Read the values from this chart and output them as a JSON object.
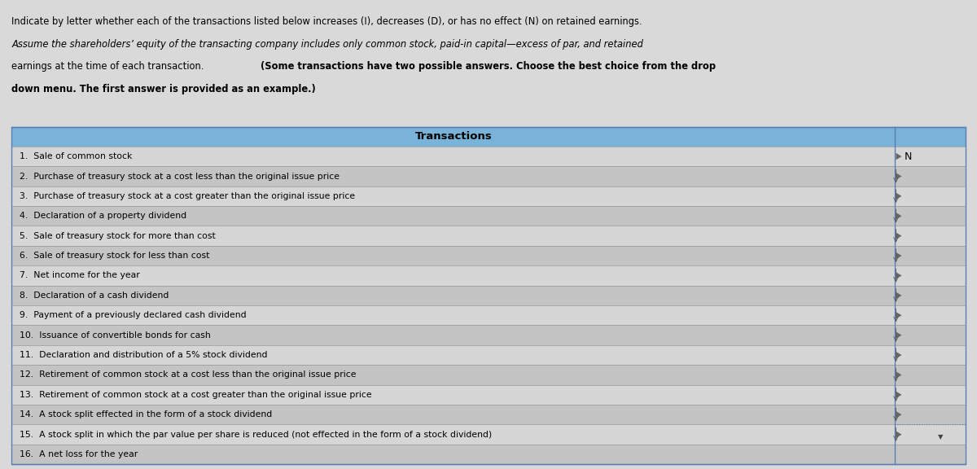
{
  "title_line1": "Indicate by letter whether each of the transactions listed below increases (I), decreases (D), or has no effect (N) on retained earnings.",
  "title_line2": "Assume the shareholders’ equity of the transacting company includes only common stock, paid-in capital—excess of par, and retained",
  "title_line3_normal": "earnings at the time of each transaction. ",
  "title_line3_bold": "(Some transactions have two possible answers. Choose the best choice from the drop",
  "title_line4_bold": "down menu. The first answer is provided as an example.)",
  "header": "Transactions",
  "transactions": [
    "1.  Sale of common stock",
    "2.  Purchase of treasury stock at a cost less than the original issue price",
    "3.  Purchase of treasury stock at a cost greater than the original issue price",
    "4.  Declaration of a property dividend",
    "5.  Sale of treasury stock for more than cost",
    "6.  Sale of treasury stock for less than cost",
    "7.  Net income for the year",
    "8.  Declaration of a cash dividend",
    "9.  Payment of a previously declared cash dividend",
    "10.  Issuance of convertible bonds for cash",
    "11.  Declaration and distribution of a 5% stock dividend",
    "12.  Retirement of common stock at a cost less than the original issue price",
    "13.  Retirement of common stock at a cost greater than the original issue price",
    "14.  A stock split effected in the form of a stock dividend",
    "15.  A stock split in which the par value per share is reduced (not effected in the form of a stock dividend)",
    "16.  A net loss for the year"
  ],
  "answer_row1": "N",
  "header_bg": "#7ab3d8",
  "row_bg_odd": "#d6d6d6",
  "row_bg_even": "#c4c4c4",
  "table_border_color": "#5a7fb5",
  "bg_color": "#d9d9d9",
  "text_color": "#000000",
  "title_fontsize": 8.3,
  "table_fontsize": 7.8
}
